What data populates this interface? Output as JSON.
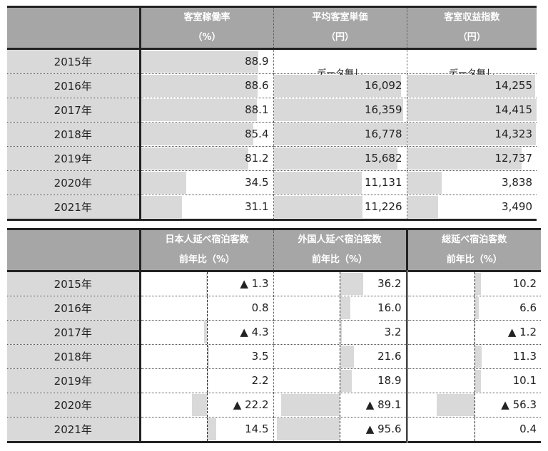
{
  "chart_data": [
    {
      "type": "table",
      "row_header": "",
      "columns": [
        {
          "title": "客室稼働率",
          "unit": "（%）"
        },
        {
          "title": "平均客室単価",
          "unit": "（円）"
        },
        {
          "title": "客室収益指数",
          "unit": "（円）"
        }
      ],
      "rows": [
        {
          "year": "2015年",
          "values": [
            "88.9",
            "データ無し",
            "データ無し"
          ]
        },
        {
          "year": "2016年",
          "values": [
            "88.6",
            "16,092",
            "14,255"
          ]
        },
        {
          "year": "2017年",
          "values": [
            "88.1",
            "16,359",
            "14,415"
          ]
        },
        {
          "year": "2018年",
          "values": [
            "85.4",
            "16,778",
            "14,323"
          ]
        },
        {
          "year": "2019年",
          "values": [
            "81.2",
            "15,682",
            "12,737"
          ]
        },
        {
          "year": "2020年",
          "values": [
            "34.5",
            "11,131",
            "3,838"
          ]
        },
        {
          "year": "2021年",
          "values": [
            "31.1",
            "11,226",
            "3,490"
          ]
        }
      ],
      "bar_color": "#d9d9d9",
      "header_color": "#a6a6a6"
    },
    {
      "type": "table",
      "row_header": "",
      "columns": [
        {
          "title": "日本人延べ宿泊客数",
          "unit": "前年比（%）"
        },
        {
          "title": "外国人延べ宿泊客数",
          "unit": "前年比（%）"
        },
        {
          "title": "総延べ宿泊客数",
          "unit": "前年比（%）"
        }
      ],
      "rows": [
        {
          "year": "2015年",
          "values": [
            "▲ 1.3",
            "36.2",
            "10.2"
          ]
        },
        {
          "year": "2016年",
          "values": [
            "0.8",
            "16.0",
            "6.6"
          ]
        },
        {
          "year": "2017年",
          "values": [
            "▲ 4.3",
            "3.2",
            "▲ 1.2"
          ]
        },
        {
          "year": "2018年",
          "values": [
            "3.5",
            "21.6",
            "11.3"
          ]
        },
        {
          "year": "2019年",
          "values": [
            "2.2",
            "18.9",
            "10.1"
          ]
        },
        {
          "year": "2020年",
          "values": [
            "▲ 22.2",
            "▲ 89.1",
            "▲ 56.3"
          ]
        },
        {
          "year": "2021年",
          "values": [
            "14.5",
            "▲ 95.6",
            "0.4"
          ]
        }
      ],
      "negative_marker": "▲",
      "bar_color": "#d9d9d9",
      "header_color": "#a6a6a6"
    }
  ]
}
